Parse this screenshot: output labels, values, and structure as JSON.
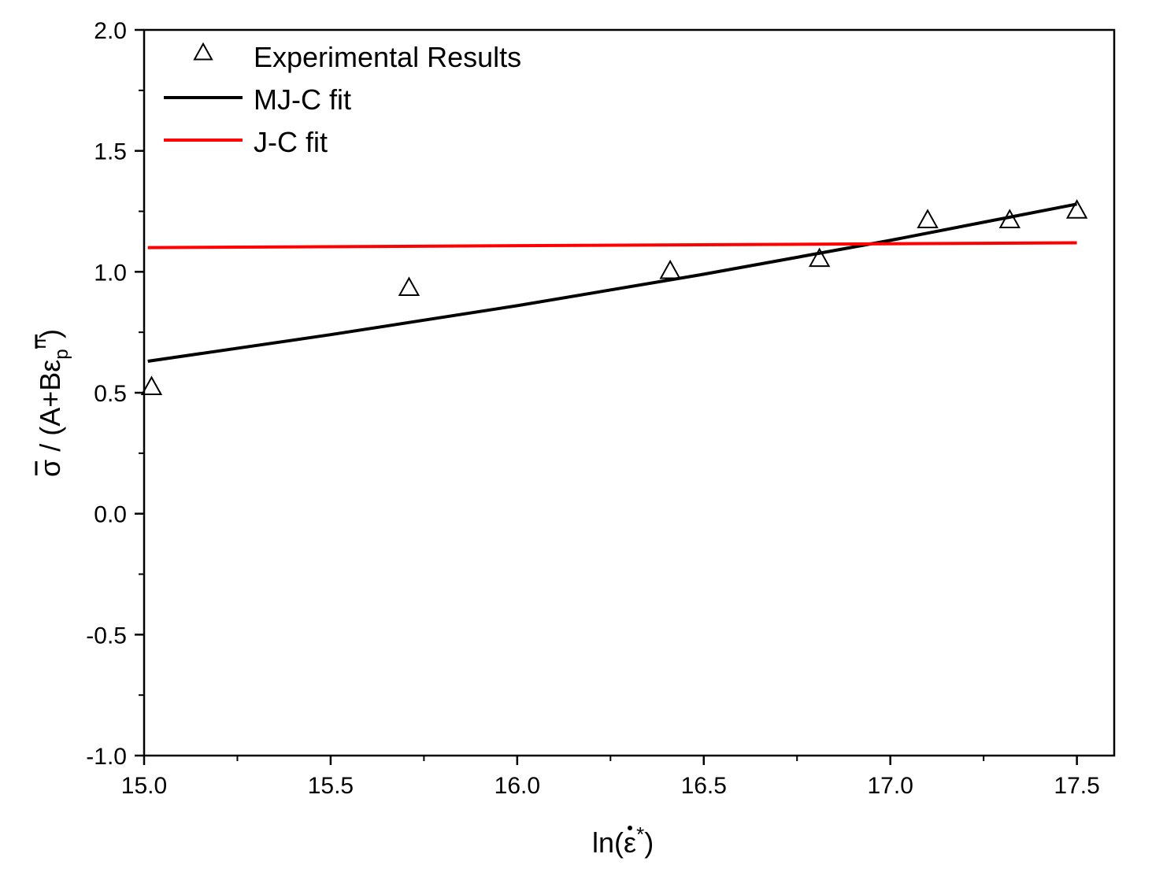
{
  "chart_data": {
    "type": "line",
    "title": "",
    "xlabel": "ln(ε̇*)",
    "ylabel": "σ̄ / (A+Bε̄p^n)",
    "xlim": [
      15.0,
      17.6
    ],
    "ylim": [
      -1.0,
      2.0
    ],
    "x_ticks": [
      15.0,
      15.5,
      16.0,
      16.5,
      17.0,
      17.5
    ],
    "x_tick_labels": [
      "15.0",
      "15.5",
      "16.0",
      "16.5",
      "17.0",
      "17.5"
    ],
    "y_ticks": [
      -1.0,
      -0.5,
      0.0,
      0.5,
      1.0,
      1.5,
      2.0
    ],
    "y_tick_labels": [
      "-1.0",
      "-0.5",
      "0.0",
      "0.5",
      "1.0",
      "1.5",
      "2.0"
    ],
    "grid": false,
    "legend_position": "top-left",
    "series": [
      {
        "name": "Experimental Results",
        "kind": "scatter",
        "marker": "open-triangle",
        "color": "#000000",
        "x": [
          15.02,
          15.71,
          16.41,
          16.81,
          17.1,
          17.32,
          17.5
        ],
        "y": [
          0.52,
          0.93,
          1.0,
          1.05,
          1.21,
          1.21,
          1.25
        ]
      },
      {
        "name": "MJ-C fit",
        "kind": "line",
        "color": "#000000",
        "x": [
          15.01,
          15.5,
          16.0,
          16.5,
          17.0,
          17.5
        ],
        "y": [
          0.63,
          0.74,
          0.86,
          0.99,
          1.13,
          1.28
        ]
      },
      {
        "name": "J-C fit",
        "kind": "line",
        "color": "#ff0000",
        "x": [
          15.01,
          17.5
        ],
        "y": [
          1.1,
          1.12
        ]
      }
    ]
  }
}
